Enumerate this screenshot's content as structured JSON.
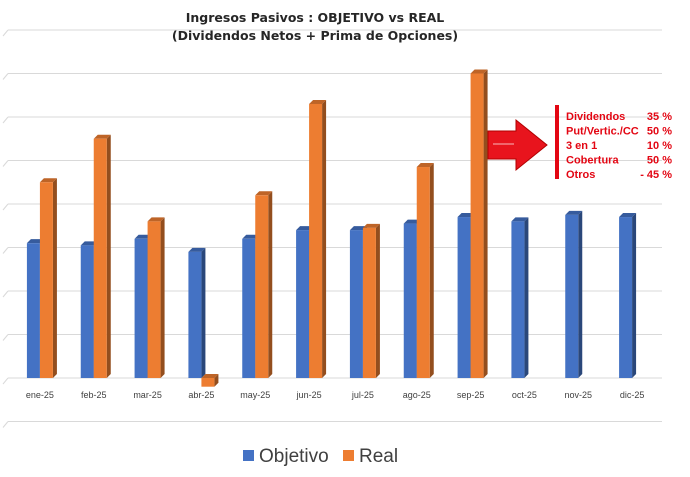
{
  "chart_data": {
    "type": "bar",
    "title": "Ingresos Pasivos : OBJETIVO vs REAL",
    "subtitle": "(Dividendos Netos + Prima de Opciones)",
    "categories": [
      "ene-25",
      "feb-25",
      "mar-25",
      "abr-25",
      "may-25",
      "jun-25",
      "jul-25",
      "ago-25",
      "sep-25",
      "oct-25",
      "nov-25",
      "dic-25"
    ],
    "series": [
      {
        "name": "Objetivo",
        "color": "#4472c4",
        "values": [
          3.1,
          3.05,
          3.2,
          2.9,
          3.2,
          3.4,
          3.4,
          3.55,
          3.7,
          3.6,
          3.75,
          3.7
        ]
      },
      {
        "name": "Real",
        "color": "#ed7d31",
        "values": [
          4.5,
          5.5,
          3.6,
          -0.2,
          4.2,
          6.3,
          3.45,
          4.85,
          7.0,
          null,
          null,
          null
        ]
      }
    ],
    "ylim": [
      -1,
      8
    ],
    "grid": true,
    "legend": "bottom",
    "annotations": {
      "items": [
        {
          "label": "Dividendos",
          "value": "35 %"
        },
        {
          "label": "Put/Vertic./CC",
          "value": "50 %"
        },
        {
          "label": "3 en 1",
          "value": "10 %"
        },
        {
          "label": "Cobertura",
          "value": "50 %"
        },
        {
          "label": "Otros",
          "value": "- 45 %"
        }
      ],
      "color": "#e30613"
    }
  }
}
